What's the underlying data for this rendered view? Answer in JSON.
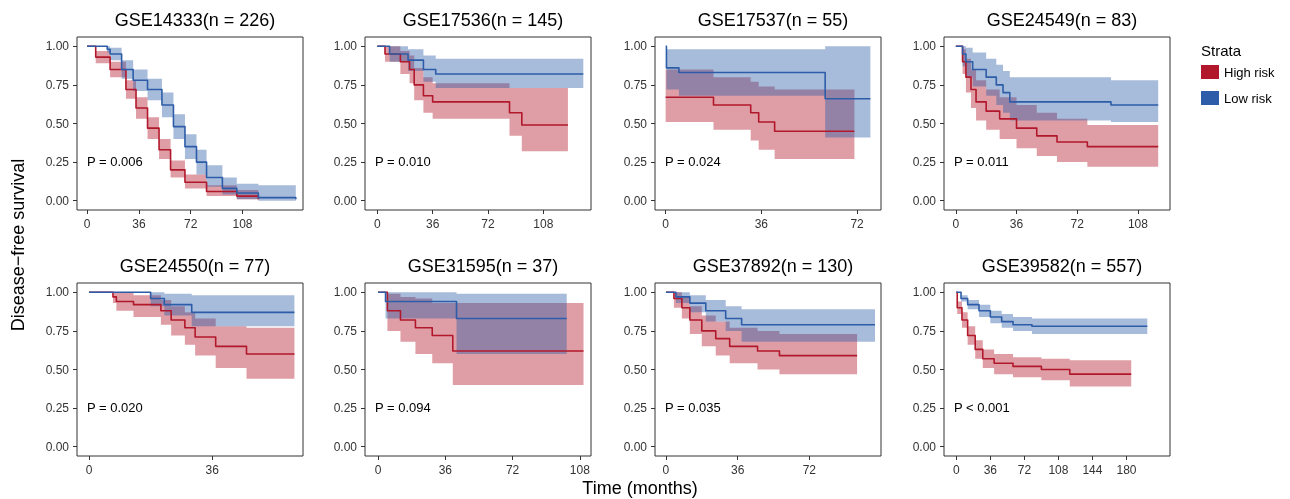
{
  "chart_data": [
    {
      "type": "step",
      "title": "GSE14333(n = 226)",
      "ylabel": "Disease−free survival",
      "xlim": [
        -7,
        150
      ],
      "xticks": [
        0,
        36,
        72,
        108
      ],
      "ylim": [
        -0.06,
        1.06
      ],
      "yticks": [
        {
          "value": 0,
          "label": "0.00"
        },
        {
          "value": 0.25,
          "label": "0.25"
        },
        {
          "value": 0.5,
          "label": "0.50"
        },
        {
          "value": 0.75,
          "label": "0.75"
        },
        {
          "value": 1,
          "label": "1.00"
        }
      ],
      "annotations": [
        "P = 0.006"
      ],
      "series": [
        {
          "color": "#b2182b",
          "x": [
            0,
            6,
            16,
            27,
            34,
            42,
            50,
            58,
            68,
            83,
            104,
            119
          ],
          "values": [
            1,
            0.93,
            0.85,
            0.72,
            0.6,
            0.47,
            0.33,
            0.2,
            0.12,
            0.06,
            0.03,
            0.01
          ],
          "lower": [
            1,
            0.89,
            0.8,
            0.66,
            0.53,
            0.4,
            0.27,
            0.15,
            0.08,
            0.03,
            0.01,
            0
          ],
          "upper": [
            1,
            0.97,
            0.9,
            0.78,
            0.67,
            0.54,
            0.4,
            0.26,
            0.17,
            0.1,
            0.07,
            0.05
          ]
        },
        {
          "color": "#2d5da8",
          "x": [
            0,
            14,
            16,
            24,
            32,
            42,
            52,
            60,
            68,
            76,
            83,
            94,
            104,
            119,
            145
          ],
          "values": [
            1,
            0.98,
            0.95,
            0.85,
            0.78,
            0.72,
            0.62,
            0.48,
            0.35,
            0.25,
            0.15,
            0.08,
            0.05,
            0.02,
            0.01
          ],
          "lower": [
            1,
            0.96,
            0.91,
            0.79,
            0.71,
            0.65,
            0.54,
            0.4,
            0.27,
            0.17,
            0.09,
            0.04,
            0.01,
            0,
            0
          ],
          "upper": [
            1,
            1,
            0.99,
            0.91,
            0.85,
            0.79,
            0.7,
            0.56,
            0.43,
            0.33,
            0.23,
            0.15,
            0.11,
            0.1,
            0.1
          ]
        }
      ]
    },
    {
      "type": "step",
      "title": "GSE17536(n = 145)",
      "xlim": [
        -8,
        139
      ],
      "xticks": [
        0,
        36,
        72,
        108
      ],
      "ylim": [
        -0.06,
        1.06
      ],
      "yticks": [
        {
          "value": 0,
          "label": "0.00"
        },
        {
          "value": 0.25,
          "label": "0.25"
        },
        {
          "value": 0.5,
          "label": "0.50"
        },
        {
          "value": 0.75,
          "label": "0.75"
        },
        {
          "value": 1,
          "label": "1.00"
        }
      ],
      "annotations": [
        "P = 0.010"
      ],
      "series": [
        {
          "color": "#b2182b",
          "x": [
            0,
            5,
            15,
            21,
            24,
            30,
            36,
            86,
            94,
            124
          ],
          "values": [
            1,
            0.95,
            0.9,
            0.85,
            0.75,
            0.68,
            0.64,
            0.57,
            0.49,
            0.49
          ],
          "lower": [
            1,
            0.9,
            0.82,
            0.76,
            0.65,
            0.57,
            0.53,
            0.42,
            0.32,
            0.32
          ],
          "upper": [
            1,
            1,
            0.97,
            0.94,
            0.86,
            0.8,
            0.76,
            0.73,
            0.73,
            0.73
          ]
        },
        {
          "color": "#2d5da8",
          "x": [
            0,
            8,
            20,
            30,
            38,
            134
          ],
          "values": [
            1,
            0.95,
            0.91,
            0.85,
            0.82,
            0.82
          ],
          "lower": [
            1,
            0.9,
            0.84,
            0.77,
            0.73,
            0.73
          ],
          "upper": [
            1,
            1,
            0.98,
            0.94,
            0.92,
            0.92
          ]
        }
      ]
    },
    {
      "type": "step",
      "title": "GSE17537(n = 55)",
      "xlim": [
        -4,
        81
      ],
      "xticks": [
        0,
        36,
        72
      ],
      "ylim": [
        -0.06,
        1.06
      ],
      "yticks": [
        {
          "value": 0,
          "label": "0.00"
        },
        {
          "value": 0.25,
          "label": "0.25"
        },
        {
          "value": 0.5,
          "label": "0.50"
        },
        {
          "value": 0.75,
          "label": "0.75"
        },
        {
          "value": 1,
          "label": "1.00"
        }
      ],
      "annotations": [
        "P = 0.024"
      ],
      "series": [
        {
          "color": "#b2182b",
          "x": [
            0,
            18,
            32,
            35,
            41,
            71
          ],
          "values": [
            0.67,
            0.62,
            0.57,
            0.51,
            0.45,
            0.45
          ],
          "lower": [
            0.51,
            0.46,
            0.39,
            0.33,
            0.27,
            0.27
          ],
          "upper": [
            0.85,
            0.8,
            0.77,
            0.74,
            0.72,
            0.72
          ]
        },
        {
          "color": "#2d5da8",
          "x": [
            0,
            0.3,
            5,
            60,
            77
          ],
          "values": [
            1,
            0.86,
            0.83,
            0.66,
            0.66
          ],
          "lower": [
            1,
            0.72,
            0.68,
            0.41,
            0.41
          ],
          "upper": [
            1,
            0.98,
            0.98,
            1,
            1
          ]
        }
      ]
    },
    {
      "type": "step",
      "title": "GSE24549(n = 83)",
      "legend": "right",
      "legend_title": "Strata",
      "xlim": [
        -7,
        127
      ],
      "xticks": [
        0,
        36,
        72,
        108
      ],
      "ylim": [
        -0.06,
        1.06
      ],
      "yticks": [
        {
          "value": 0,
          "label": "0.00"
        },
        {
          "value": 0.25,
          "label": "0.25"
        },
        {
          "value": 0.5,
          "label": "0.50"
        },
        {
          "value": 0.75,
          "label": "0.75"
        },
        {
          "value": 1,
          "label": "1.00"
        }
      ],
      "annotations": [
        "P = 0.011"
      ],
      "series": [
        {
          "name": "High risk",
          "color": "#b2182b",
          "x": [
            0,
            4,
            6,
            9,
            12,
            18,
            26,
            36,
            48,
            60,
            78,
            120
          ],
          "values": [
            1,
            0.9,
            0.8,
            0.72,
            0.64,
            0.58,
            0.53,
            0.47,
            0.42,
            0.38,
            0.35,
            0.35
          ],
          "lower": [
            1,
            0.82,
            0.7,
            0.6,
            0.52,
            0.46,
            0.4,
            0.34,
            0.29,
            0.25,
            0.22,
            0.22
          ],
          "upper": [
            1,
            0.98,
            0.92,
            0.85,
            0.78,
            0.72,
            0.67,
            0.62,
            0.57,
            0.53,
            0.49,
            0.49
          ]
        },
        {
          "name": "Low risk",
          "color": "#2d5da8",
          "x": [
            0,
            4,
            6,
            10,
            18,
            24,
            28,
            32,
            92,
            120
          ],
          "values": [
            1,
            0.95,
            0.9,
            0.85,
            0.8,
            0.75,
            0.7,
            0.64,
            0.62,
            0.62
          ],
          "lower": [
            1,
            0.87,
            0.8,
            0.74,
            0.68,
            0.62,
            0.57,
            0.52,
            0.51,
            0.51
          ],
          "upper": [
            1,
            1,
            0.99,
            0.96,
            0.92,
            0.88,
            0.84,
            0.8,
            0.78,
            0.78
          ]
        }
      ]
    },
    {
      "type": "step",
      "title": "GSE24550(n = 77)",
      "xlim": [
        -3.5,
        62.5
      ],
      "xticks": [
        0,
        36
      ],
      "ylim": [
        -0.06,
        1.06
      ],
      "yticks": [
        {
          "value": 0,
          "label": "0.00"
        },
        {
          "value": 0.25,
          "label": "0.25"
        },
        {
          "value": 0.5,
          "label": "0.50"
        },
        {
          "value": 0.75,
          "label": "0.75"
        },
        {
          "value": 1,
          "label": "1.00"
        }
      ],
      "annotations": [
        "P = 0.020"
      ],
      "series": [
        {
          "color": "#b2182b",
          "x": [
            0,
            7,
            8,
            13,
            21,
            24,
            28,
            31,
            37,
            46,
            60
          ],
          "values": [
            1,
            0.97,
            0.94,
            0.92,
            0.88,
            0.82,
            0.77,
            0.71,
            0.65,
            0.6,
            0.6
          ],
          "lower": [
            1,
            0.93,
            0.88,
            0.84,
            0.79,
            0.72,
            0.66,
            0.59,
            0.51,
            0.44,
            0.44
          ],
          "upper": [
            1,
            1,
            1,
            0.98,
            0.95,
            0.91,
            0.87,
            0.83,
            0.78,
            0.77,
            0.77
          ]
        },
        {
          "color": "#2d5da8",
          "x": [
            0,
            18,
            22,
            30,
            60
          ],
          "values": [
            1,
            0.96,
            0.92,
            0.87,
            0.87
          ],
          "lower": [
            1,
            0.91,
            0.85,
            0.78,
            0.77
          ],
          "upper": [
            1,
            1,
            0.99,
            0.98,
            0.98
          ]
        }
      ]
    },
    {
      "type": "step",
      "title": "GSE31595(n = 37)",
      "xlabel": "Time (months)",
      "xlim": [
        -7,
        114
      ],
      "xticks": [
        0,
        36,
        72,
        108
      ],
      "ylim": [
        -0.06,
        1.06
      ],
      "yticks": [
        {
          "value": 0,
          "label": "0.00"
        },
        {
          "value": 0.25,
          "label": "0.25"
        },
        {
          "value": 0.5,
          "label": "0.50"
        },
        {
          "value": 0.75,
          "label": "0.75"
        },
        {
          "value": 1,
          "label": "1.00"
        }
      ],
      "annotations": [
        "P = 0.094"
      ],
      "series": [
        {
          "color": "#b2182b",
          "x": [
            0,
            5,
            12,
            20,
            29,
            40,
            110
          ],
          "values": [
            1,
            0.88,
            0.82,
            0.77,
            0.72,
            0.62,
            0.62
          ],
          "lower": [
            1,
            0.75,
            0.68,
            0.6,
            0.54,
            0.4,
            0.4
          ],
          "upper": [
            1,
            0.99,
            0.97,
            0.96,
            0.93,
            0.93,
            0.93
          ]
        },
        {
          "color": "#2d5da8",
          "x": [
            0,
            4,
            42,
            101
          ],
          "values": [
            1,
            0.94,
            0.83,
            0.83
          ],
          "lower": [
            1,
            0.83,
            0.6,
            0.6
          ],
          "upper": [
            1,
            1,
            0.99,
            0.99
          ]
        }
      ]
    },
    {
      "type": "step",
      "title": "GSE37892(n = 130)",
      "xlim": [
        -5.5,
        108
      ],
      "xticks": [
        0,
        36,
        72
      ],
      "ylim": [
        -0.06,
        1.06
      ],
      "yticks": [
        {
          "value": 0,
          "label": "0.00"
        },
        {
          "value": 0.25,
          "label": "0.25"
        },
        {
          "value": 0.5,
          "label": "0.50"
        },
        {
          "value": 0.75,
          "label": "0.75"
        },
        {
          "value": 1,
          "label": "1.00"
        }
      ],
      "annotations": [
        "P = 0.035"
      ],
      "series": [
        {
          "color": "#b2182b",
          "x": [
            0,
            4,
            8,
            12,
            18,
            25,
            32,
            46,
            57,
            96
          ],
          "values": [
            1,
            0.96,
            0.9,
            0.82,
            0.75,
            0.7,
            0.65,
            0.62,
            0.59,
            0.59
          ],
          "lower": [
            1,
            0.9,
            0.83,
            0.73,
            0.65,
            0.59,
            0.54,
            0.5,
            0.47,
            0.47
          ],
          "upper": [
            1,
            1,
            0.97,
            0.91,
            0.85,
            0.81,
            0.77,
            0.75,
            0.73,
            0.73
          ]
        },
        {
          "color": "#2d5da8",
          "x": [
            0,
            5,
            12,
            20,
            30,
            38,
            105
          ],
          "values": [
            1,
            0.97,
            0.93,
            0.88,
            0.83,
            0.79,
            0.79
          ],
          "lower": [
            1,
            0.93,
            0.87,
            0.81,
            0.75,
            0.68,
            0.68
          ],
          "upper": [
            1,
            1,
            0.98,
            0.95,
            0.91,
            0.89,
            0.89
          ]
        }
      ]
    },
    {
      "type": "step",
      "title": "GSE39582(n = 557)",
      "xlim": [
        -13,
        226
      ],
      "xticks": [
        0,
        36,
        72,
        108,
        144,
        180
      ],
      "ylim": [
        -0.06,
        1.06
      ],
      "yticks": [
        {
          "value": 0,
          "label": "0.00"
        },
        {
          "value": 0.25,
          "label": "0.25"
        },
        {
          "value": 0.5,
          "label": "0.50"
        },
        {
          "value": 0.75,
          "label": "0.75"
        },
        {
          "value": 1,
          "label": "1.00"
        }
      ],
      "annotations": [
        "P < 0.001"
      ],
      "series": [
        {
          "color": "#b2182b",
          "x": [
            0,
            1,
            6,
            12,
            20,
            28,
            40,
            60,
            90,
            120,
            185
          ],
          "values": [
            1,
            0.9,
            0.82,
            0.72,
            0.63,
            0.57,
            0.54,
            0.52,
            0.5,
            0.47,
            0.47
          ],
          "lower": [
            1,
            0.86,
            0.77,
            0.66,
            0.57,
            0.51,
            0.47,
            0.45,
            0.43,
            0.39,
            0.39
          ],
          "upper": [
            1,
            0.94,
            0.87,
            0.78,
            0.69,
            0.63,
            0.6,
            0.58,
            0.57,
            0.56,
            0.56
          ]
        },
        {
          "color": "#2d5da8",
          "x": [
            0,
            5,
            12,
            24,
            36,
            48,
            60,
            80,
            202
          ],
          "values": [
            1,
            0.96,
            0.92,
            0.88,
            0.84,
            0.81,
            0.79,
            0.78,
            0.78
          ],
          "lower": [
            1,
            0.94,
            0.89,
            0.84,
            0.8,
            0.77,
            0.75,
            0.73,
            0.73
          ],
          "upper": [
            1,
            0.98,
            0.95,
            0.92,
            0.88,
            0.86,
            0.84,
            0.83,
            0.83
          ]
        }
      ]
    }
  ]
}
